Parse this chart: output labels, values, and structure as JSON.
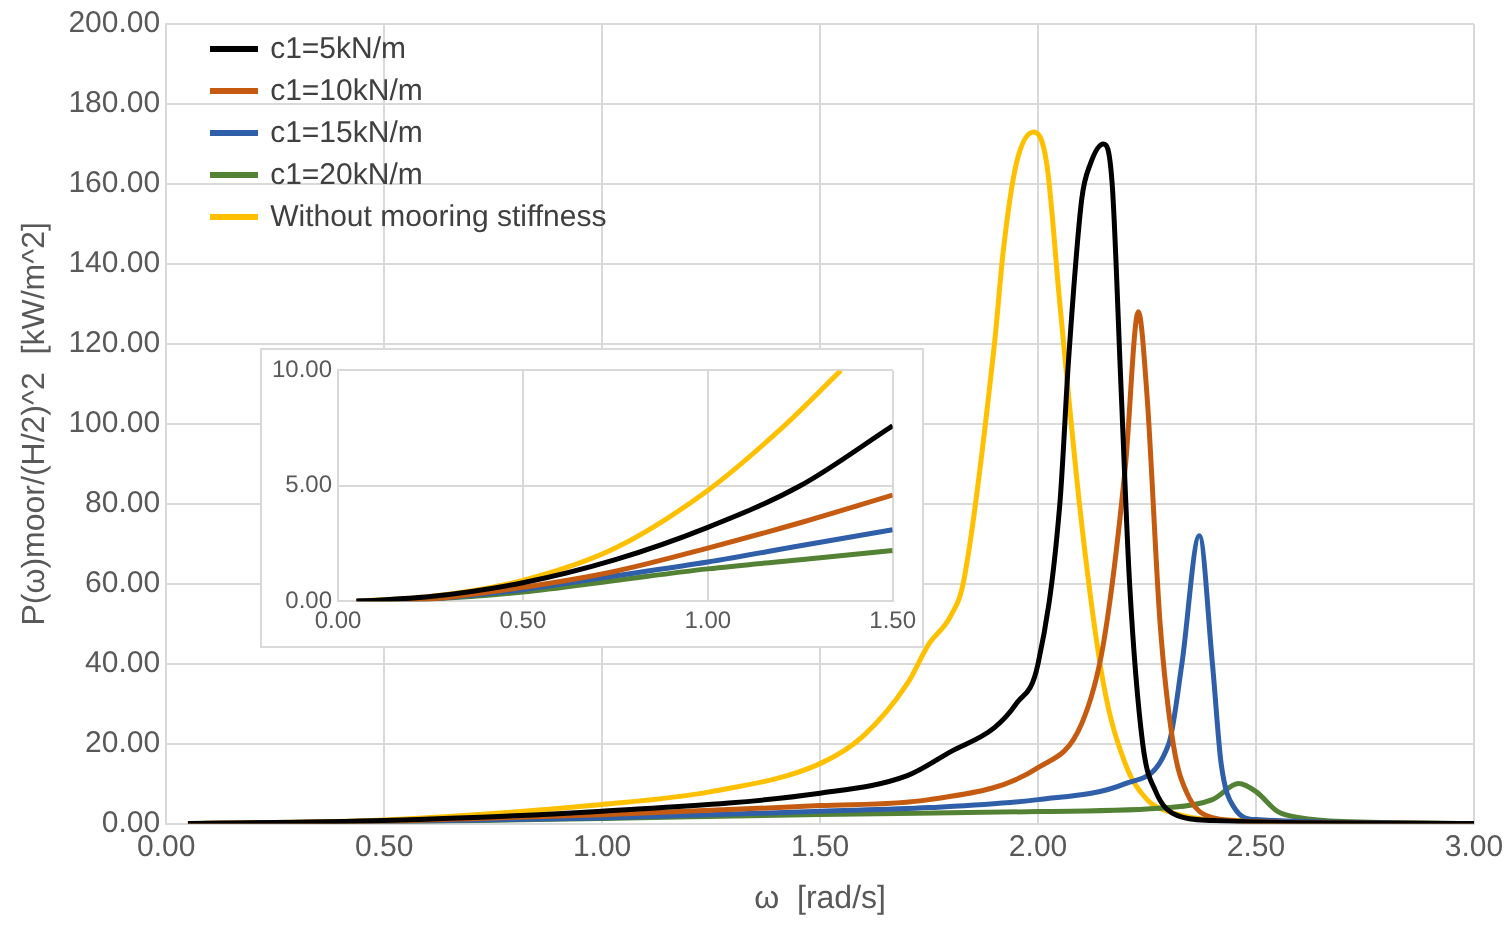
{
  "chart_data": [
    {
      "type": "line",
      "xlabel": "ω  [rad/s]",
      "ylabel": "P(ω)moor/(H/2)^2  [kW/m^2]",
      "xlim": [
        0,
        3
      ],
      "ylim": [
        0,
        200
      ],
      "xticks": [
        {
          "value": 0,
          "label": "0.00"
        },
        {
          "value": 0.5,
          "label": "0.50"
        },
        {
          "value": 1,
          "label": "1.00"
        },
        {
          "value": 1.5,
          "label": "1.50"
        },
        {
          "value": 2,
          "label": "2.00"
        },
        {
          "value": 2.5,
          "label": "2.50"
        },
        {
          "value": 3,
          "label": "3.00"
        }
      ],
      "yticks": [
        {
          "value": 0,
          "label": "0.00"
        },
        {
          "value": 20,
          "label": "20.00"
        },
        {
          "value": 40,
          "label": "40.00"
        },
        {
          "value": 60,
          "label": "60.00"
        },
        {
          "value": 80,
          "label": "80.00"
        },
        {
          "value": 100,
          "label": "100.00"
        },
        {
          "value": 120,
          "label": "120.00"
        },
        {
          "value": 140,
          "label": "140.00"
        },
        {
          "value": 160,
          "label": "160.00"
        },
        {
          "value": 180,
          "label": "180.00"
        },
        {
          "value": 200,
          "label": "200.00"
        }
      ],
      "grid": true,
      "legend": "top left",
      "marker": "none",
      "line_style": "solid",
      "series": [
        {
          "name": "c1=5kN/m",
          "color": "#000000",
          "x": [
            0.05,
            0.5,
            1.0,
            1.5,
            1.7,
            1.8,
            1.9,
            1.95,
            2.0,
            2.05,
            2.07,
            2.1,
            2.12,
            2.15,
            2.17,
            2.19,
            2.21,
            2.24,
            2.27,
            2.32,
            2.4,
            2.6,
            3.0
          ],
          "values": [
            0,
            0.8,
            3.1,
            7.6,
            12,
            18,
            24,
            30,
            40,
            80,
            116,
            156,
            165,
            170,
            160,
            110,
            60,
            20,
            8,
            2,
            0.8,
            0.2,
            0
          ]
        },
        {
          "name": "c1=10kN/m",
          "color": "#c55a11",
          "x": [
            0.05,
            0.5,
            1.0,
            1.5,
            1.75,
            2.0,
            2.1,
            2.15,
            2.2,
            2.23,
            2.25,
            2.28,
            2.31,
            2.34,
            2.4,
            2.5,
            3.0
          ],
          "values": [
            0,
            0.6,
            2.2,
            4.5,
            6,
            14,
            25,
            45,
            89,
            128,
            107,
            50,
            20,
            8,
            1.5,
            0.5,
            0
          ]
        },
        {
          "name": "c1=15kN/m",
          "color": "#2e5fa8",
          "x": [
            0.05,
            0.5,
            1.0,
            1.5,
            1.75,
            2.0,
            2.2,
            2.3,
            2.33,
            2.37,
            2.4,
            2.42,
            2.45,
            2.5,
            3.0
          ],
          "values": [
            0,
            0.5,
            1.4,
            3.1,
            4,
            6,
            10,
            20,
            40,
            72,
            40,
            15,
            4,
            1,
            0
          ]
        },
        {
          "name": "c1=20kN/m",
          "color": "#548235",
          "x": [
            0.05,
            0.5,
            1.0,
            1.5,
            2.0,
            2.3,
            2.4,
            2.46,
            2.5,
            2.55,
            2.6,
            2.7,
            3.0
          ],
          "values": [
            0,
            0.4,
            1.3,
            2.3,
            3,
            4,
            6,
            10,
            8,
            3,
            1.5,
            0.5,
            0
          ]
        },
        {
          "name": "Without mooring stiffness",
          "color": "#ffc000",
          "x": [
            0.05,
            0.5,
            1.0,
            1.25,
            1.5,
            1.6,
            1.7,
            1.75,
            1.8,
            1.83,
            1.9,
            1.92,
            1.95,
            1.99,
            2.02,
            2.05,
            2.1,
            2.15,
            2.2,
            2.25,
            2.3,
            2.4,
            3.0
          ],
          "values": [
            0,
            0.9,
            4.8,
            8,
            15,
            22,
            35,
            45,
            52,
            61,
            120,
            143,
            165,
            173,
            165,
            130,
            75,
            35,
            15,
            6,
            3,
            1,
            0
          ]
        }
      ]
    },
    {
      "type": "line",
      "xlim": [
        0,
        1.5
      ],
      "ylim": [
        0,
        10
      ],
      "xticks": [
        {
          "value": 0,
          "label": "0.00"
        },
        {
          "value": 0.5,
          "label": "0.50"
        },
        {
          "value": 1,
          "label": "1.00"
        },
        {
          "value": 1.5,
          "label": "1.50"
        }
      ],
      "yticks": [
        {
          "value": 0,
          "label": "0.00"
        },
        {
          "value": 5,
          "label": "5.00"
        },
        {
          "value": 10,
          "label": "10.00"
        }
      ],
      "grid": true,
      "marker": "none",
      "line_style": "solid",
      "series": [
        {
          "color": "#000000",
          "x": [
            0.05,
            0.25,
            0.5,
            0.75,
            1.0,
            1.25,
            1.5
          ],
          "values": [
            0,
            0.2,
            0.8,
            1.8,
            3.2,
            5.0,
            7.6
          ]
        },
        {
          "color": "#c55a11",
          "x": [
            0.05,
            0.25,
            0.5,
            0.75,
            1.0,
            1.25,
            1.5
          ],
          "values": [
            0,
            0.1,
            0.6,
            1.3,
            2.3,
            3.4,
            4.6
          ]
        },
        {
          "color": "#2e5fa8",
          "x": [
            0.05,
            0.25,
            0.5,
            0.75,
            1.0,
            1.25,
            1.5
          ],
          "values": [
            0,
            0.1,
            0.5,
            1.1,
            1.7,
            2.4,
            3.1
          ]
        },
        {
          "color": "#548235",
          "x": [
            0.05,
            0.25,
            0.5,
            0.75,
            1.0,
            1.25,
            1.5
          ],
          "values": [
            0,
            0.1,
            0.4,
            0.9,
            1.4,
            1.8,
            2.2
          ]
        },
        {
          "color": "#ffc000",
          "x": [
            0.05,
            0.25,
            0.5,
            0.75,
            1.0,
            1.2,
            1.36
          ],
          "values": [
            0,
            0.2,
            0.9,
            2.3,
            4.8,
            7.5,
            10
          ]
        }
      ]
    }
  ]
}
